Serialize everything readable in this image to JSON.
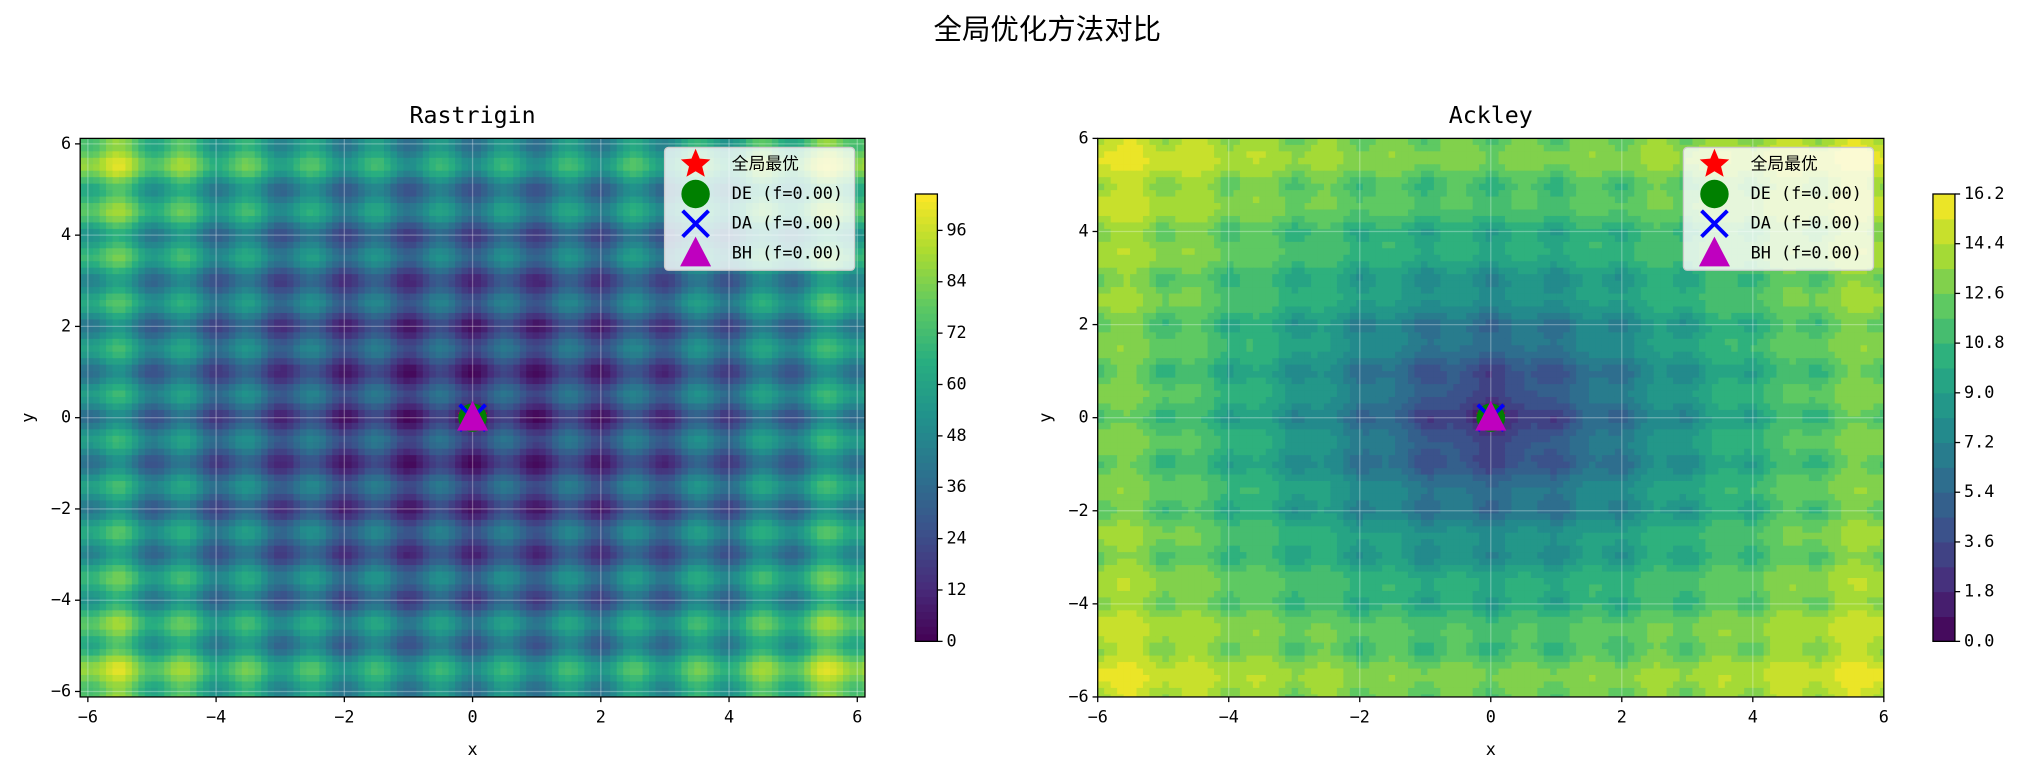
{
  "title": "全局优化方法对比",
  "chart_data": [
    {
      "type": "contour",
      "title": "Rastrigin",
      "xlabel": "x",
      "ylabel": "y",
      "xlim": [
        -6.12,
        6.12
      ],
      "ylim": [
        -6.12,
        6.12
      ],
      "xticks": [
        {
          "value": -6,
          "label": "−6"
        },
        {
          "value": -4,
          "label": "−4"
        },
        {
          "value": -2,
          "label": "−2"
        },
        0,
        2,
        4,
        6
      ],
      "yticks": [
        {
          "value": -6,
          "label": "−6"
        },
        {
          "value": -4,
          "label": "−4"
        },
        {
          "value": -2,
          "label": "−2"
        },
        0,
        2,
        4,
        6
      ],
      "clim": [
        0,
        104.5
      ],
      "cticks": [
        0,
        12,
        24,
        36,
        48,
        60,
        72,
        84,
        96
      ],
      "grid": true,
      "legend": "upper right",
      "series": [
        {
          "name": "全局最优",
          "color": "#ff0000",
          "marker": "star",
          "x": [
            0
          ],
          "y": [
            0
          ]
        },
        {
          "name": "DE (f=0.00)",
          "color": "#008000",
          "marker": "circle",
          "x": [
            0
          ],
          "y": [
            0
          ]
        },
        {
          "name": "DA (f=0.00)",
          "color": "#0000ff",
          "marker": "x",
          "x": [
            0
          ],
          "y": [
            0
          ]
        },
        {
          "name": "BH (f=0.00)",
          "color": "#bf00bf",
          "marker": "triangle",
          "x": [
            0
          ],
          "y": [
            0
          ]
        }
      ]
    },
    {
      "type": "contour",
      "title": "Ackley",
      "xlabel": "x",
      "ylabel": "y",
      "xlim": [
        -6,
        6
      ],
      "ylim": [
        -6,
        6
      ],
      "xticks": [
        {
          "value": -6,
          "label": "−6"
        },
        {
          "value": -4,
          "label": "−4"
        },
        {
          "value": -2,
          "label": "−2"
        },
        0,
        2,
        4,
        6
      ],
      "yticks": [
        {
          "value": -6,
          "label": "−6"
        },
        {
          "value": -4,
          "label": "−4"
        },
        {
          "value": -2,
          "label": "−2"
        },
        0,
        2,
        4,
        6
      ],
      "clim": [
        0,
        16.2
      ],
      "cticks": [
        {
          "value": 0,
          "label": "0.0"
        },
        1.8,
        3.6,
        5.4,
        7.2,
        {
          "value": 9,
          "label": "9.0"
        },
        10.8,
        12.6,
        14.4,
        16.2
      ],
      "grid": true,
      "legend": "upper right",
      "series": [
        {
          "name": "全局最优",
          "color": "#ff0000",
          "marker": "star",
          "x": [
            0
          ],
          "y": [
            0
          ]
        },
        {
          "name": "DE (f=0.00)",
          "color": "#008000",
          "marker": "circle",
          "x": [
            0
          ],
          "y": [
            0
          ]
        },
        {
          "name": "DA (f=0.00)",
          "color": "#0000ff",
          "marker": "x",
          "x": [
            0
          ],
          "y": [
            0
          ]
        },
        {
          "name": "BH (f=0.00)",
          "color": "#bf00bf",
          "marker": "triangle",
          "x": [
            0
          ],
          "y": [
            0
          ]
        }
      ]
    }
  ]
}
